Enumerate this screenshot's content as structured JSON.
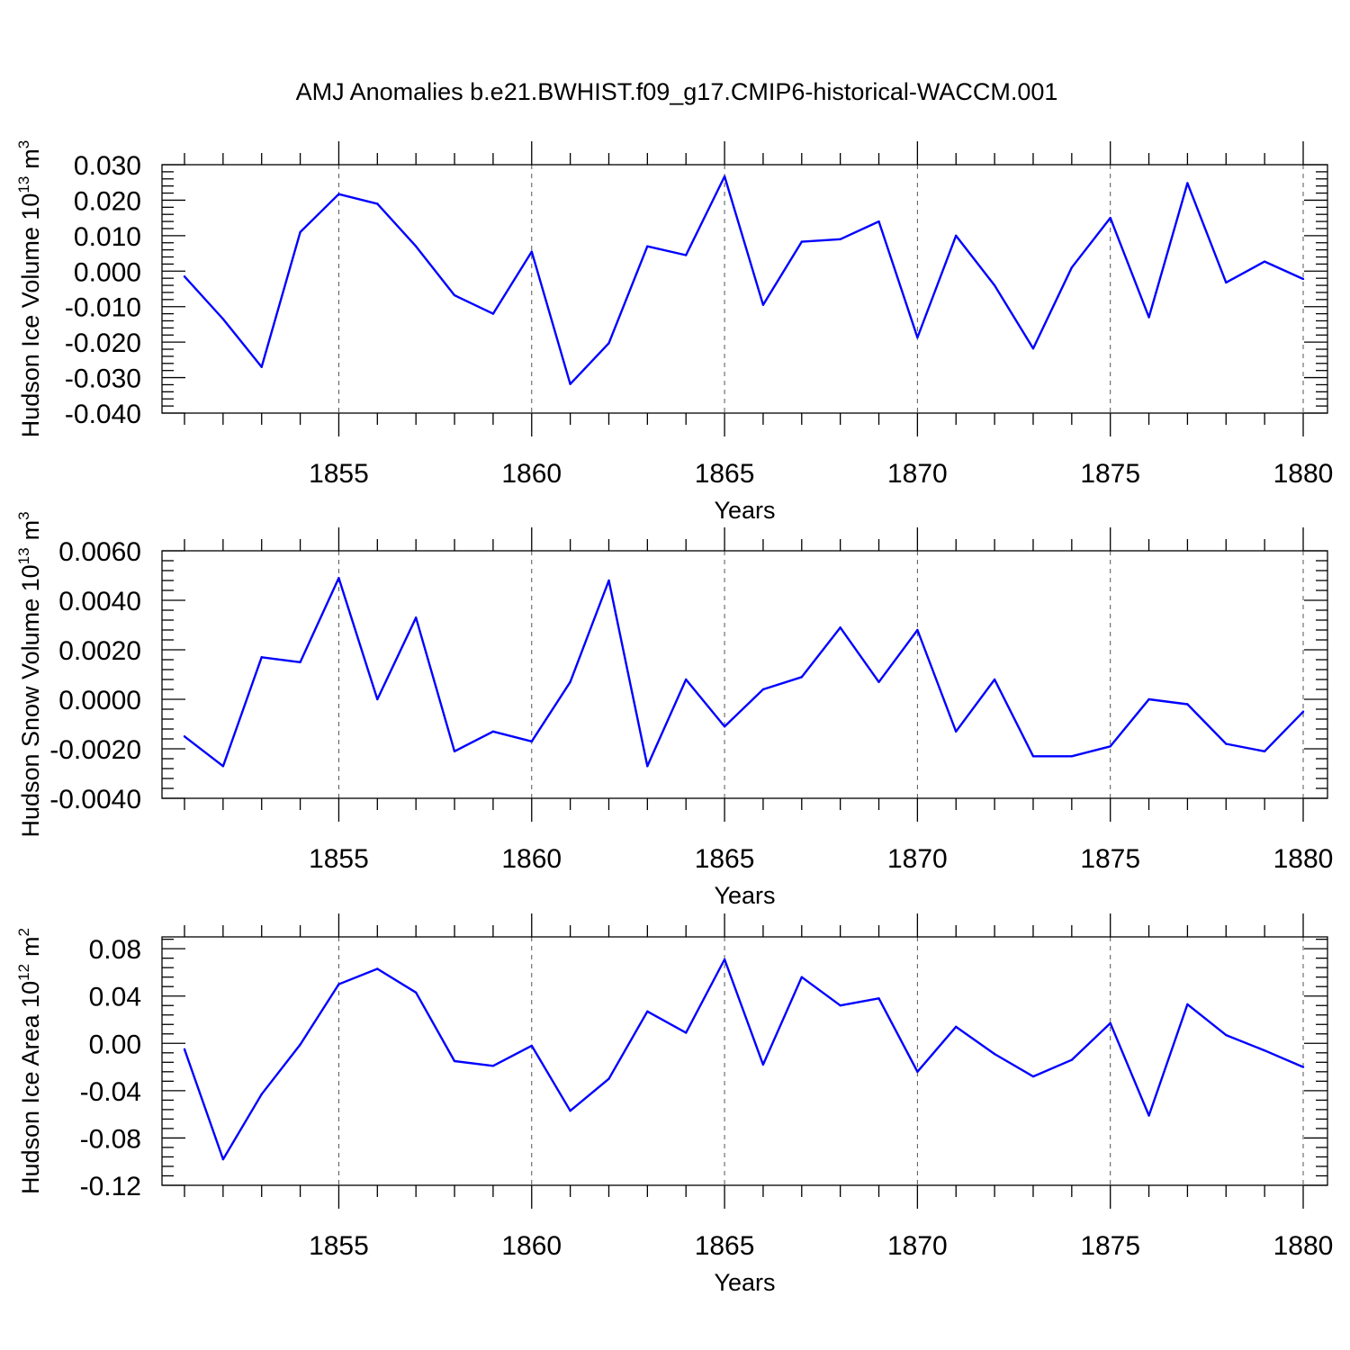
{
  "figure": {
    "title": "AMJ Anomalies b.e21.BWHIST.f09_g17.CMIP6-historical-WACCM.001"
  },
  "chart_data": [
    {
      "type": "line",
      "id": "ice-volume",
      "title": "",
      "xlabel": "Years",
      "ylabel": "Hudson Ice Volume 10",
      "ylabel_exponent": "13",
      "ylabel_unit": "m",
      "ylabel_unit_power": "3",
      "xlim": [
        1851,
        1880
      ],
      "ylim": [
        -0.04,
        0.03
      ],
      "xticks": [
        1855,
        1860,
        1865,
        1870,
        1875,
        1880
      ],
      "xtick_labels": [
        "1855",
        "1860",
        "1865",
        "1870",
        "1875",
        "1880"
      ],
      "yticks": [
        0.03,
        0.02,
        0.01,
        0.0,
        -0.01,
        -0.02,
        -0.03,
        -0.04
      ],
      "ytick_labels": [
        "0.030",
        "0.020",
        "0.010",
        "0.000",
        "-0.010",
        "-0.020",
        "-0.030",
        "-0.040"
      ],
      "grid": "vertical dashed at major x ticks",
      "color": "#0000ff",
      "x": [
        1851,
        1852,
        1853,
        1854,
        1855,
        1856,
        1857,
        1858,
        1859,
        1860,
        1861,
        1862,
        1863,
        1864,
        1865,
        1866,
        1867,
        1868,
        1869,
        1870,
        1871,
        1872,
        1873,
        1874,
        1875,
        1876,
        1877,
        1878,
        1879,
        1880
      ],
      "values": [
        -0.0015,
        -0.0135,
        -0.027,
        0.011,
        0.0217,
        0.019,
        0.007,
        -0.0068,
        -0.012,
        0.0055,
        -0.0318,
        -0.0203,
        0.007,
        0.0045,
        0.0267,
        -0.0095,
        0.0083,
        0.009,
        0.014,
        -0.0187,
        0.01,
        -0.004,
        -0.0218,
        0.001,
        0.015,
        -0.013,
        0.0248,
        -0.0032,
        0.0027,
        -0.0022
      ]
    },
    {
      "type": "line",
      "id": "snow-volume",
      "title": "",
      "xlabel": "Years",
      "ylabel": "Hudson Snow Volume 10",
      "ylabel_exponent": "13",
      "ylabel_unit": "m",
      "ylabel_unit_power": "3",
      "xlim": [
        1851,
        1880
      ],
      "ylim": [
        -0.004,
        0.006
      ],
      "xticks": [
        1855,
        1860,
        1865,
        1870,
        1875,
        1880
      ],
      "xtick_labels": [
        "1855",
        "1860",
        "1865",
        "1870",
        "1875",
        "1880"
      ],
      "yticks": [
        0.006,
        0.004,
        0.002,
        0.0,
        -0.002,
        -0.004
      ],
      "ytick_labels": [
        "0.0060",
        "0.0040",
        "0.0020",
        "0.0000",
        "-0.0020",
        "-0.0040"
      ],
      "grid": "vertical dashed at major x ticks",
      "color": "#0000ff",
      "x": [
        1851,
        1852,
        1853,
        1854,
        1855,
        1856,
        1857,
        1858,
        1859,
        1860,
        1861,
        1862,
        1863,
        1864,
        1865,
        1866,
        1867,
        1868,
        1869,
        1870,
        1871,
        1872,
        1873,
        1874,
        1875,
        1876,
        1877,
        1878,
        1879,
        1880
      ],
      "values": [
        -0.0015,
        -0.0027,
        0.0017,
        0.0015,
        0.0049,
        0.0,
        0.0033,
        -0.0021,
        -0.0013,
        -0.0017,
        0.0007,
        0.0048,
        -0.0027,
        0.0008,
        -0.0011,
        0.0004,
        0.0009,
        0.0029,
        0.0007,
        0.0028,
        -0.0013,
        0.0008,
        -0.0023,
        -0.0023,
        -0.0019,
        0.0,
        -0.0002,
        -0.0018,
        -0.0021,
        -0.0005
      ]
    },
    {
      "type": "line",
      "id": "ice-area",
      "title": "",
      "xlabel": "Years",
      "ylabel": "Hudson Ice Area 10",
      "ylabel_exponent": "12",
      "ylabel_unit": "m",
      "ylabel_unit_power": "2",
      "xlim": [
        1851,
        1880
      ],
      "ylim": [
        -0.12,
        0.09
      ],
      "xticks": [
        1855,
        1860,
        1865,
        1870,
        1875,
        1880
      ],
      "xtick_labels": [
        "1855",
        "1860",
        "1865",
        "1870",
        "1875",
        "1880"
      ],
      "yticks": [
        0.08,
        0.04,
        0.0,
        -0.04,
        -0.08,
        -0.12
      ],
      "ytick_labels": [
        "0.08",
        "0.04",
        "0.00",
        "-0.04",
        "-0.08",
        "-0.12"
      ],
      "grid": "vertical dashed at major x ticks",
      "color": "#0000ff",
      "x": [
        1851,
        1852,
        1853,
        1854,
        1855,
        1856,
        1857,
        1858,
        1859,
        1860,
        1861,
        1862,
        1863,
        1864,
        1865,
        1866,
        1867,
        1868,
        1869,
        1870,
        1871,
        1872,
        1873,
        1874,
        1875,
        1876,
        1877,
        1878,
        1879,
        1880
      ],
      "values": [
        -0.005,
        -0.098,
        -0.043,
        -0.001,
        0.05,
        0.063,
        0.043,
        -0.015,
        -0.019,
        -0.002,
        -0.057,
        -0.03,
        0.027,
        0.009,
        0.071,
        -0.018,
        0.056,
        0.032,
        0.038,
        -0.024,
        0.014,
        -0.009,
        -0.028,
        -0.014,
        0.017,
        -0.061,
        0.033,
        0.007,
        -0.006,
        -0.02
      ]
    }
  ]
}
